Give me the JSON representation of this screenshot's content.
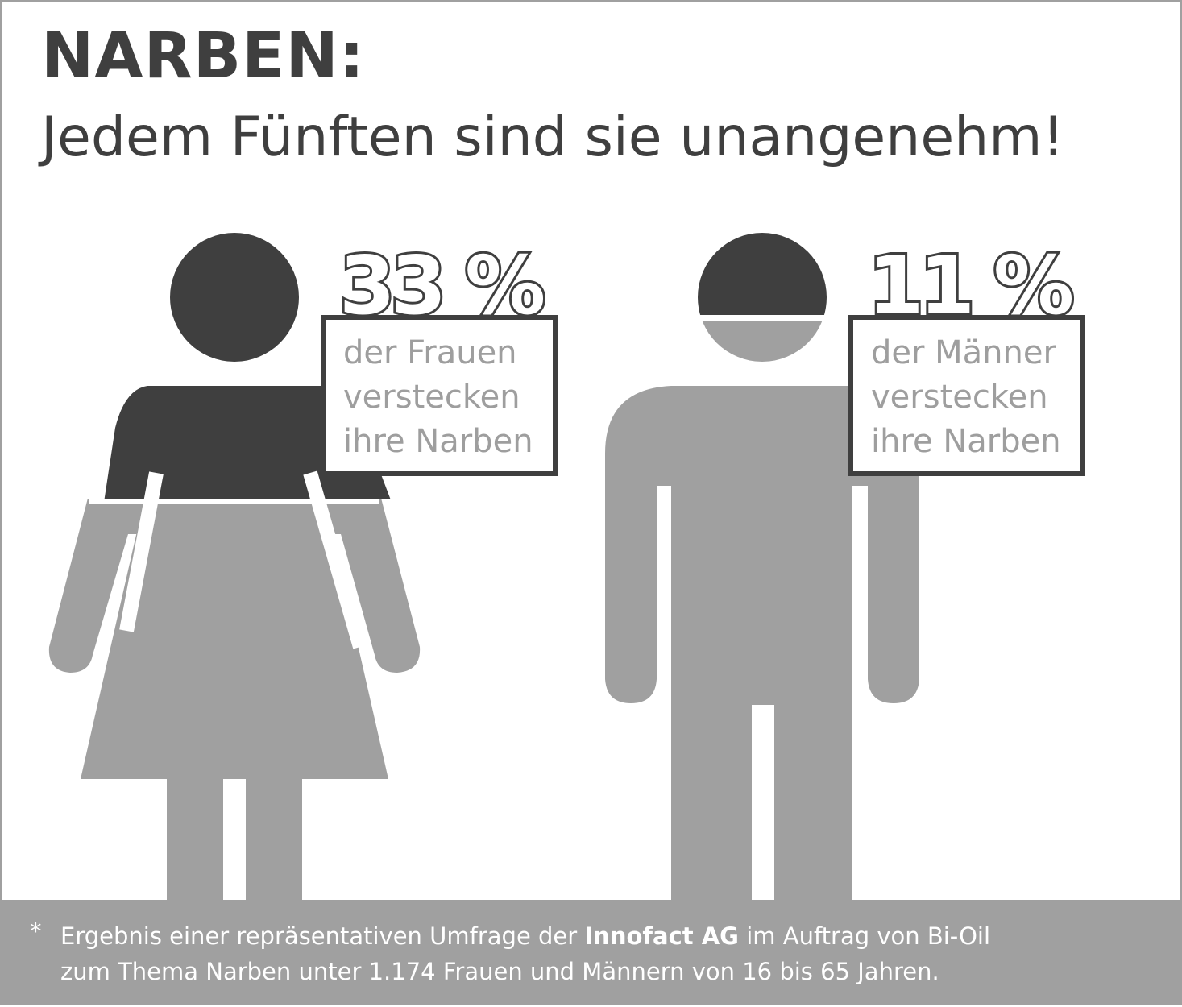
{
  "title": {
    "line1": "NARBEN:",
    "line2": "Jedem Fünften sind sie unangenehm!"
  },
  "chart_data": {
    "type": "pictogram",
    "series": [
      {
        "name": "Frauen",
        "value_percent": 33,
        "value_label": "33 %",
        "description": [
          "der Frauen",
          "verstecken",
          "ihre Narben"
        ]
      },
      {
        "name": "Männer",
        "value_percent": 11,
        "value_label": "11 %",
        "description": [
          "der Männer",
          "verstecken",
          "ihre Narben"
        ]
      }
    ]
  },
  "footnote": {
    "marker": "*",
    "line1_pre": "Ergebnis einer repräsentativen Umfrage der ",
    "line1_bold": "Innofact AG",
    "line1_post": " im Auftrag von Bi-Oil",
    "line2": "zum Thema Narben unter 1.174 Frauen und Männern von 16 bis 65 Jahren."
  },
  "colors": {
    "dark": "#3f3f3f",
    "light": "#a0a0a0",
    "background": "#ffffff"
  }
}
